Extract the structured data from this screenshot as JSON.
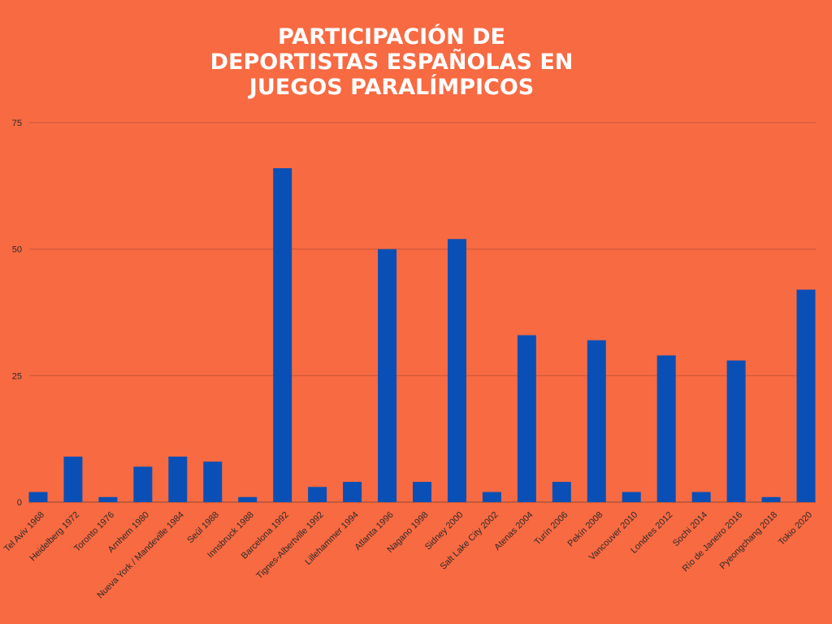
{
  "chart_data": {
    "type": "bar",
    "title_lines": [
      "PARTICIPACIÓN DE",
      "DEPORTISTAS ESPAÑOLAS EN",
      "JUEGOS PARALÍMPICOS"
    ],
    "categories": [
      "Tel Aviv 1968",
      "Heidelberg 1972",
      "Toronto 1976",
      "Arnhem 1980",
      "Nueva York / Mandeville 1984",
      "Seúl 1988",
      "Innsbruck 1988",
      "Barcelona 1992",
      "Tignes-Albertville 1992",
      "Lillehammer 1994",
      "Atlanta 1996",
      "Nagano 1998",
      "Sidney 2000",
      "Salt Lake City 2002",
      "Atenas 2004",
      "Turín 2006",
      "Pekín 2008",
      "Vancouver 2010",
      "Londres 2012",
      "Sochi 2014",
      "Río de Janeiro 2016",
      "Pyeongchang 2018",
      "Tokio 2020"
    ],
    "values": [
      2,
      9,
      1,
      7,
      9,
      8,
      1,
      66,
      3,
      4,
      50,
      4,
      52,
      2,
      33,
      4,
      32,
      2,
      29,
      2,
      28,
      1,
      42
    ],
    "ylim": [
      0,
      75
    ],
    "yticks": [
      0,
      25,
      50,
      75
    ],
    "grid": true,
    "legend": "none",
    "xlabel": "",
    "ylabel": "",
    "colors": {
      "background": "#f86a42",
      "bar": "#0a4fb5",
      "grid": "#c9563a",
      "title": "#ffffff",
      "axis_text": "#2a2a2a"
    }
  }
}
